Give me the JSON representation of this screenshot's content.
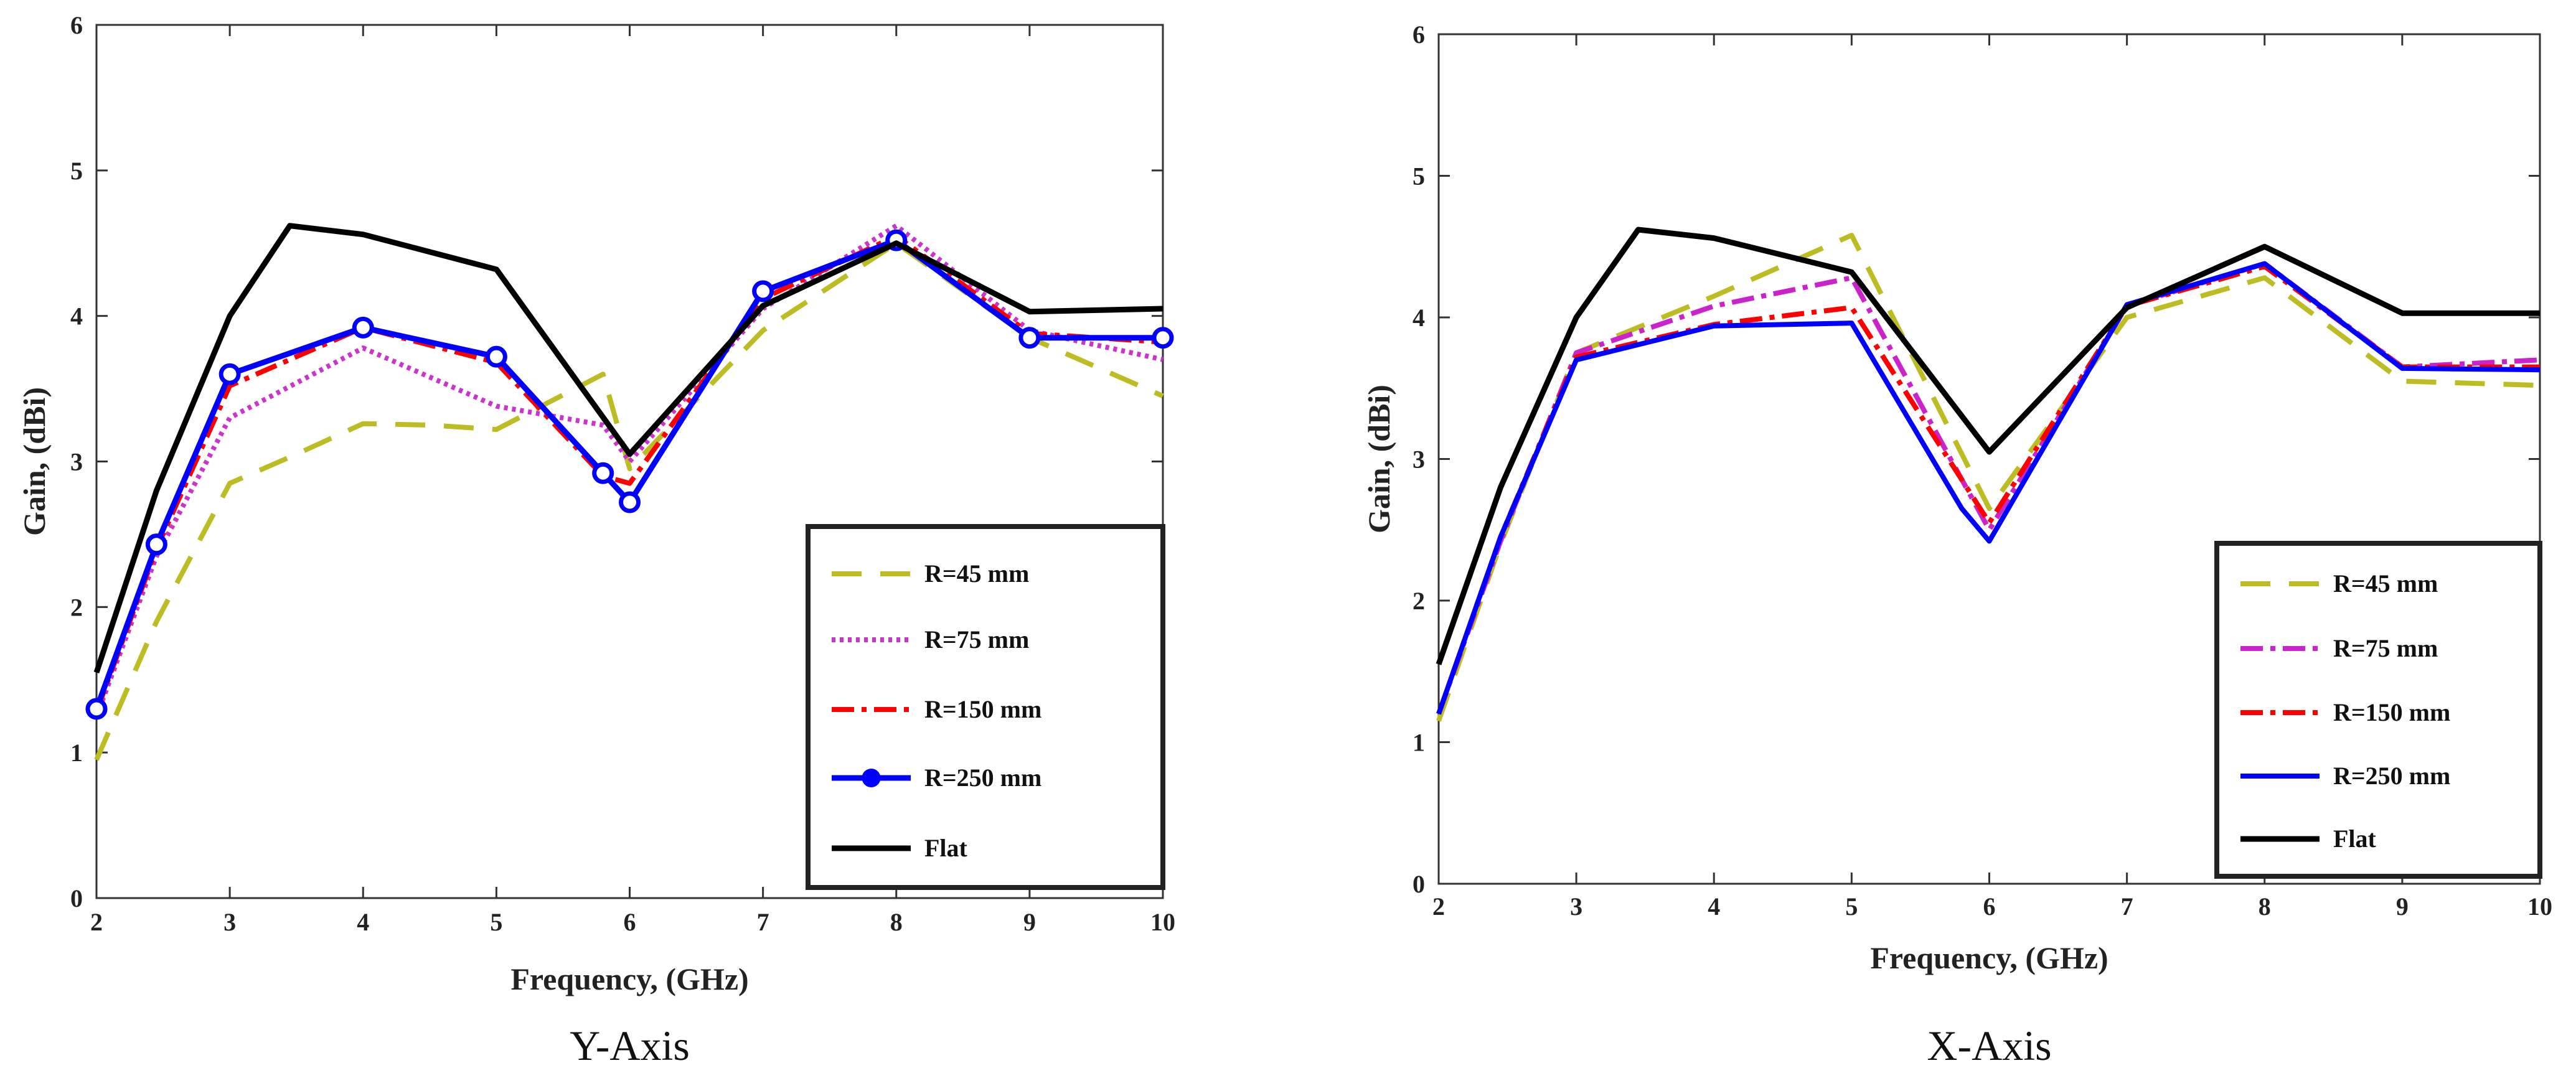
{
  "chart_data": [
    {
      "type": "line",
      "caption": "Y-Axis",
      "xlabel": "Frequency, (GHz)",
      "ylabel": "Gain, (dBi)",
      "xlim": [
        2,
        10
      ],
      "ylim": [
        0,
        6
      ],
      "xticks": [
        2,
        3,
        4,
        5,
        6,
        7,
        8,
        9,
        10
      ],
      "yticks": [
        0,
        1,
        2,
        3,
        4,
        5,
        6
      ],
      "legend": "bottom-right",
      "series": [
        {
          "name": "R=45 mm",
          "color": "#bcbd22",
          "dash": "48,30",
          "width": 8,
          "marker": false,
          "x": [
            2,
            2.45,
            3,
            3.5,
            4,
            4.5,
            5,
            5.8,
            6,
            7,
            8,
            9,
            10
          ],
          "y": [
            0.95,
            1.9,
            2.85,
            3.05,
            3.26,
            3.25,
            3.22,
            3.6,
            2.95,
            3.9,
            4.5,
            3.85,
            3.45
          ]
        },
        {
          "name": "R=75 mm",
          "color": "#cc33cc",
          "dash": "6,7",
          "width": 8,
          "marker": false,
          "x": [
            2,
            2.45,
            3,
            4,
            5,
            5.8,
            6,
            7,
            8,
            9,
            10
          ],
          "y": [
            1.25,
            2.35,
            3.3,
            3.78,
            3.38,
            3.25,
            3.0,
            4.05,
            4.62,
            3.9,
            3.7
          ]
        },
        {
          "name": "R=150 mm",
          "color": "#ff0000",
          "dash": "36,12,8,12",
          "width": 8,
          "marker": false,
          "x": [
            2,
            2.45,
            3,
            4,
            5,
            5.8,
            6,
            7,
            8,
            9,
            10
          ],
          "y": [
            1.28,
            2.4,
            3.52,
            3.92,
            3.68,
            2.9,
            2.85,
            4.12,
            4.55,
            3.88,
            3.82
          ]
        },
        {
          "name": "R=250 mm",
          "color": "#0000ff",
          "dash": "",
          "width": 9,
          "marker": true,
          "x": [
            2,
            2.45,
            3,
            4,
            5,
            5.8,
            6,
            7,
            8,
            9,
            10
          ],
          "y": [
            1.3,
            2.43,
            3.6,
            3.92,
            3.72,
            2.92,
            2.72,
            4.17,
            4.52,
            3.85,
            3.85
          ]
        },
        {
          "name": "Flat",
          "color": "#000000",
          "dash": "",
          "width": 9,
          "marker": false,
          "x": [
            2,
            2.45,
            3,
            3.45,
            4,
            5,
            6,
            7,
            8,
            9,
            10
          ],
          "y": [
            1.55,
            2.8,
            4.0,
            4.62,
            4.56,
            4.32,
            3.05,
            4.07,
            4.5,
            4.03,
            4.05
          ]
        }
      ]
    },
    {
      "type": "line",
      "caption": "X-Axis",
      "xlabel": "Frequency, (GHz)",
      "ylabel": "Gain, (dBi)",
      "xlim": [
        2,
        10
      ],
      "ylim": [
        0,
        6
      ],
      "xticks": [
        2,
        3,
        4,
        5,
        6,
        7,
        8,
        9,
        10
      ],
      "yticks": [
        0,
        1,
        2,
        3,
        4,
        5,
        6
      ],
      "legend": "bottom-right",
      "series": [
        {
          "name": "R=45 mm",
          "color": "#bcbd22",
          "dash": "48,30",
          "width": 8,
          "marker": false,
          "x": [
            2,
            2.45,
            3,
            4,
            5,
            6,
            7,
            8,
            9,
            10
          ],
          "y": [
            1.15,
            2.4,
            3.75,
            4.15,
            4.58,
            2.65,
            4.0,
            4.28,
            3.55,
            3.52
          ]
        },
        {
          "name": "R=75 mm",
          "color": "#cc22cc",
          "dash": "36,12,8,12",
          "width": 8,
          "marker": false,
          "x": [
            2,
            2.45,
            3,
            4,
            5,
            6,
            7,
            8,
            9,
            10
          ],
          "y": [
            1.2,
            2.42,
            3.75,
            4.08,
            4.28,
            2.5,
            4.08,
            4.38,
            3.65,
            3.7
          ]
        },
        {
          "name": "R=150 mm",
          "color": "#ff0000",
          "dash": "36,12,8,12",
          "width": 8,
          "marker": false,
          "x": [
            2,
            2.45,
            3,
            4,
            5,
            6,
            7,
            8,
            9,
            10
          ],
          "y": [
            1.2,
            2.45,
            3.72,
            3.95,
            4.07,
            2.55,
            4.08,
            4.36,
            3.65,
            3.65
          ]
        },
        {
          "name": "R=250 mm",
          "color": "#0000ff",
          "dash": "",
          "width": 8,
          "marker": false,
          "x": [
            2,
            2.45,
            3,
            4,
            5,
            5.8,
            6,
            7,
            8,
            9,
            10
          ],
          "y": [
            1.2,
            2.45,
            3.7,
            3.94,
            3.96,
            2.65,
            2.42,
            4.09,
            4.38,
            3.64,
            3.63
          ]
        },
        {
          "name": "Flat",
          "color": "#000000",
          "dash": "",
          "width": 9,
          "marker": false,
          "x": [
            2,
            2.45,
            3,
            3.45,
            4,
            5,
            6,
            7,
            8,
            9,
            10
          ],
          "y": [
            1.55,
            2.8,
            4.0,
            4.62,
            4.56,
            4.32,
            3.05,
            4.07,
            4.5,
            4.03,
            4.03
          ]
        }
      ]
    }
  ]
}
